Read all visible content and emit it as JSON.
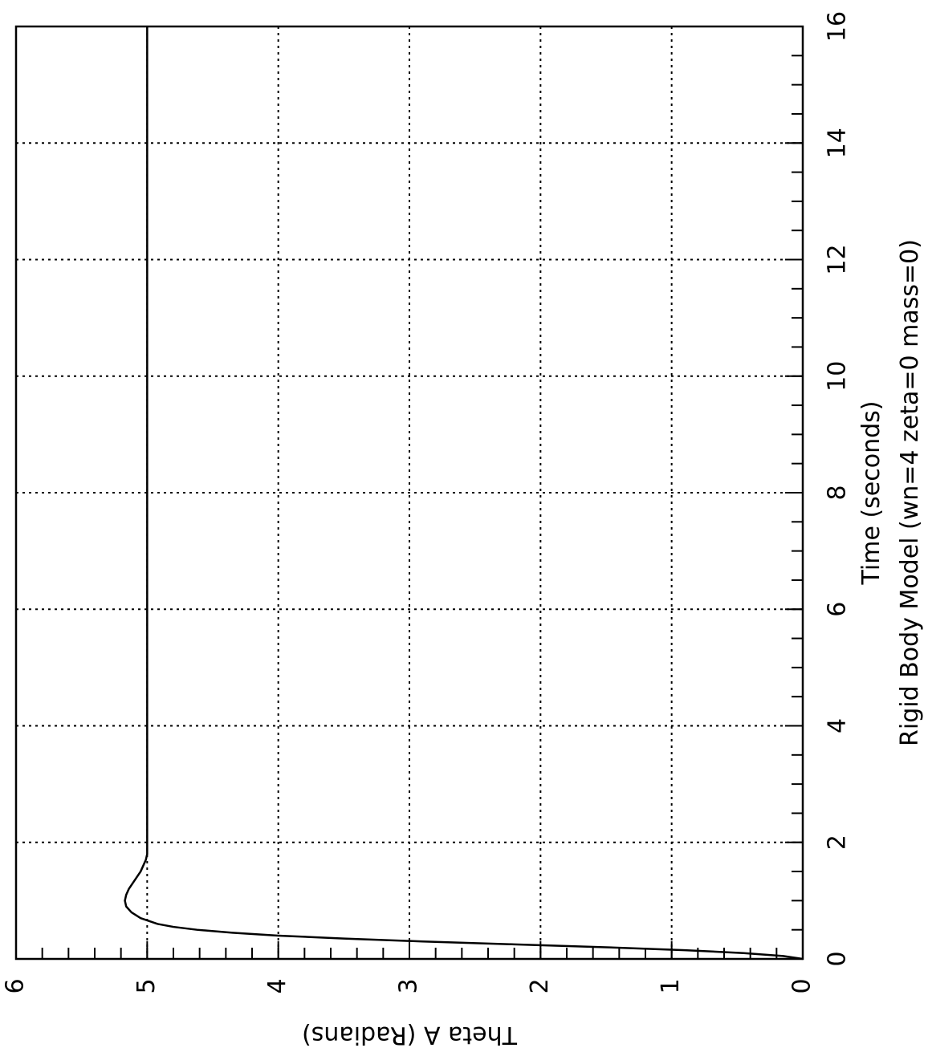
{
  "chart_data": {
    "type": "line",
    "orientation": "rotated-90-ccw",
    "xlabel": "Time   (seconds)",
    "ylabel": "Theta  A   (Radians)",
    "caption": "Rigid  Body  Model   (wn=4  zeta=0  mass=0)",
    "xlim": [
      0,
      16
    ],
    "ylim": [
      0,
      6
    ],
    "x_ticks": [
      "0",
      "2",
      "4",
      "6",
      "8",
      "10",
      "12",
      "14",
      "16"
    ],
    "y_ticks": [
      "0",
      "1",
      "2",
      "3",
      "4",
      "5",
      "6"
    ],
    "grid": true,
    "series": [
      {
        "x": [
          0,
          0.05,
          0.1,
          0.15,
          0.2,
          0.25,
          0.3,
          0.35,
          0.4,
          0.45,
          0.5,
          0.55,
          0.6,
          0.7,
          0.8,
          0.9,
          1.0,
          1.1,
          1.2,
          1.3,
          1.4,
          1.5,
          1.6,
          1.7,
          1.8,
          2.0,
          2.5,
          3,
          4,
          5,
          6,
          8,
          10,
          12,
          14,
          16
        ],
        "y": [
          0,
          0.15,
          0.45,
          0.9,
          1.5,
          2.2,
          2.9,
          3.5,
          4.0,
          4.35,
          4.62,
          4.8,
          4.92,
          5.05,
          5.12,
          5.16,
          5.17,
          5.16,
          5.14,
          5.11,
          5.08,
          5.05,
          5.03,
          5.01,
          5.0,
          5.0,
          5.0,
          5.0,
          5.0,
          5.0,
          5.0,
          5.0,
          5.0,
          5.0,
          5.0,
          5.0
        ]
      }
    ]
  }
}
